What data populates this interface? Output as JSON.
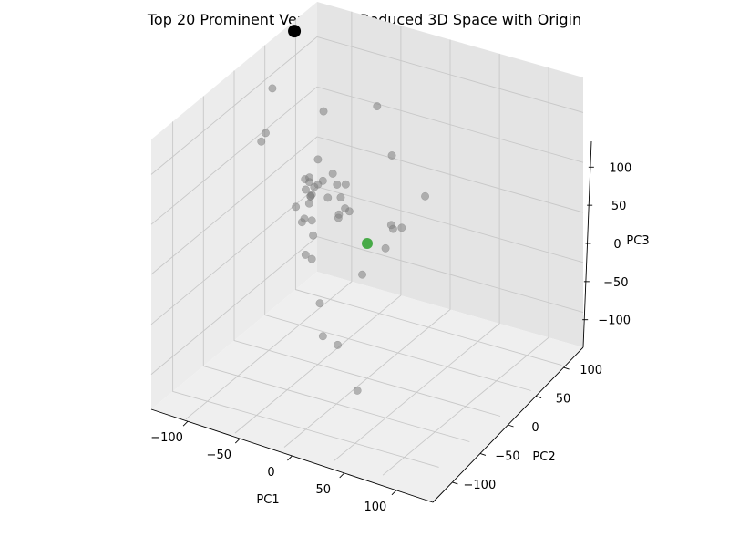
{
  "chart_data": {
    "type": "scatter3d",
    "title": "Top 20 Prominent Vertices in Reduced 3D Space with Origin",
    "xlabel": "PC1",
    "ylabel": "PC2",
    "zlabel": "PC3",
    "xlim": [
      -135,
      135
    ],
    "ylim": [
      -135,
      135
    ],
    "zlim": [
      -135,
      135
    ],
    "xticks": [
      -100,
      -50,
      0,
      50,
      100
    ],
    "yticks": [
      -100,
      -50,
      0,
      50,
      100
    ],
    "zticks": [
      -100,
      -50,
      0,
      50,
      100
    ],
    "tick_labels": {
      "x": [
        "−100",
        "−50",
        "0",
        "50",
        "100"
      ],
      "y": [
        "−100",
        "−50",
        "0",
        "50",
        "100"
      ],
      "z": [
        "−100",
        "−50",
        "0",
        "50",
        "100"
      ]
    },
    "grid": true,
    "colors": {
      "points": "#808080",
      "prominent": "#000000",
      "origin": "#2ca02c",
      "pane_left": "#ececec",
      "pane_right": "#e4e4e4",
      "pane_floor": "#efefef",
      "grid": "#c8c8c8"
    },
    "series": [
      {
        "role": "vertices",
        "x": [
          0,
          0,
          2,
          0,
          15,
          10,
          12,
          5,
          0,
          0,
          -2,
          -5,
          -10,
          2,
          5,
          8,
          0,
          0,
          -40,
          -60,
          -110,
          5,
          10,
          -8,
          -15,
          20,
          20,
          20,
          28,
          30,
          26,
          18,
          22,
          55,
          -5,
          -10,
          -3,
          3,
          -15,
          0,
          -20,
          40,
          8,
          6
        ],
        "y": [
          -10,
          -25,
          -60,
          35,
          35,
          90,
          100,
          100,
          50,
          45,
          55,
          62,
          70,
          55,
          45,
          40,
          30,
          10,
          30,
          100,
          50,
          60,
          50,
          -30,
          -15,
          45,
          50,
          60,
          40,
          40,
          40,
          55,
          45,
          -5,
          30,
          -20,
          20,
          20,
          40,
          50,
          35,
          30,
          35,
          25
        ],
        "z": [
          140,
          95,
          65,
          60,
          130,
          135,
          80,
          85,
          70,
          50,
          40,
          20,
          0,
          -30,
          -70,
          -100,
          -110,
          -150,
          -60,
          -70,
          -75,
          50,
          40,
          20,
          15,
          45,
          50,
          30,
          50,
          70,
          25,
          15,
          60,
          55,
          35,
          15,
          25,
          55,
          40,
          45,
          15,
          20,
          40,
          25
        ]
      },
      {
        "role": "prominent-vertex",
        "x": [
          -90
        ],
        "y": [
          130
        ],
        "z": [
          130
        ]
      },
      {
        "role": "origin",
        "x": [
          0
        ],
        "y": [
          0
        ],
        "z": [
          0
        ]
      }
    ]
  }
}
